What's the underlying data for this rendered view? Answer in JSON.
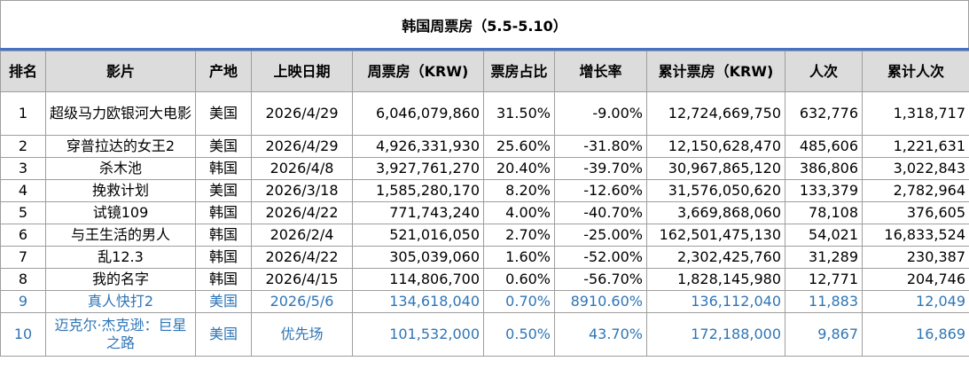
{
  "title": "韩国周票房（5.5-5.10）",
  "headers": [
    "排名",
    "影片",
    "产地",
    "上映日期",
    "周票房（KRW)",
    "票房占比",
    "增长率",
    "累计票房（KRW)",
    "人次",
    "累计人次"
  ],
  "rows": [
    [
      "1",
      "超级马力欧银河大电影",
      "美国",
      "2026/4/29",
      "6,046,079,860",
      "31.50%",
      "-9.00%",
      "12,724,669,750",
      "632,776",
      "1,318,717"
    ],
    [
      "2",
      "穿普拉达的女王2",
      "美国",
      "2026/4/29",
      "4,926,331,930",
      "25.60%",
      "-31.80%",
      "12,150,628,470",
      "485,606",
      "1,221,631"
    ],
    [
      "3",
      "杀木池",
      "韩国",
      "2026/4/8",
      "3,927,761,270",
      "20.40%",
      "-39.70%",
      "30,967,865,120",
      "386,806",
      "3,022,843"
    ],
    [
      "4",
      "挽救计划",
      "美国",
      "2026/3/18",
      "1,585,280,170",
      "8.20%",
      "-12.60%",
      "31,576,050,620",
      "133,379",
      "2,782,964"
    ],
    [
      "5",
      "试镜109",
      "韩国",
      "2026/4/22",
      "771,743,240",
      "4.00%",
      "-40.70%",
      "3,669,868,060",
      "78,108",
      "376,605"
    ],
    [
      "6",
      "与王生活的男人",
      "韩国",
      "2026/2/4",
      "521,016,050",
      "2.70%",
      "-25.00%",
      "162,501,475,130",
      "54,021",
      "16,833,524"
    ],
    [
      "7",
      "乱12.3",
      "韩国",
      "2026/4/22",
      "305,039,060",
      "1.60%",
      "-52.00%",
      "2,302,425,760",
      "31,289",
      "230,387"
    ],
    [
      "8",
      "我的名字",
      "韩国",
      "2026/4/15",
      "114,806,700",
      "0.60%",
      "-56.70%",
      "1,828,145,980",
      "12,771",
      "204,746"
    ],
    [
      "9",
      "真人快打2",
      "美国",
      "2026/5/6",
      "134,618,040",
      "0.70%",
      "8910.60%",
      "136,112,040",
      "11,883",
      "12,049"
    ],
    [
      "10",
      "迈克尔·杰克逊：巨星之路",
      "美国",
      "优先场",
      "101,532,000",
      "0.50%",
      "43.70%",
      "172,188,000",
      "9,867",
      "16,869"
    ]
  ],
  "colors": {
    "header_bg": "#dcdcdc",
    "title_rule": "#4472c4",
    "new_release_text": "#2e75b6",
    "grid": "#9e9e9e"
  }
}
